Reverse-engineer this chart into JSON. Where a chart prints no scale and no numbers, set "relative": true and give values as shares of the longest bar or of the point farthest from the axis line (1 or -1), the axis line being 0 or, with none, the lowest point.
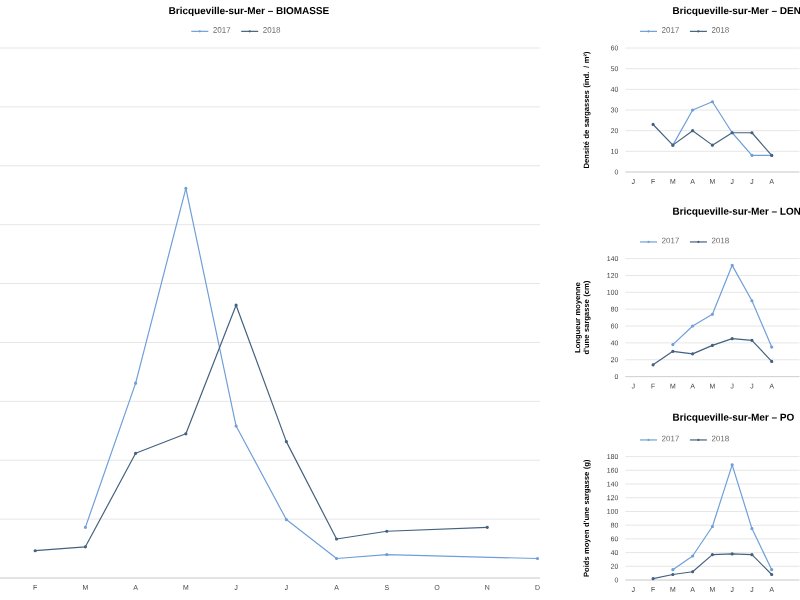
{
  "chart_data": [
    {
      "type": "line",
      "title": "Bricqueville-sur-Mer – BIOMASSE",
      "categories": [
        "F",
        "M",
        "A",
        "M",
        "J",
        "J",
        "A",
        "S",
        "O",
        "N",
        "D"
      ],
      "relative": true,
      "grid": "y",
      "legend": "top",
      "marker": "circle",
      "line_style": "solid",
      "series": [
        {
          "name": "2017",
          "color": "#6f9fd8",
          "values": [
            null,
            0.13,
            0.5,
            1,
            0.39,
            0.15,
            0.05,
            0.06,
            null,
            null,
            0.05
          ]
        },
        {
          "name": "2018",
          "color": "#44627f",
          "values": [
            0.07,
            0.08,
            0.32,
            0.37,
            0.7,
            0.35,
            0.1,
            0.12,
            null,
            0.13,
            null
          ]
        }
      ]
    },
    {
      "type": "line",
      "title": "Bricqueville-sur-Mer – DEN",
      "ylabel": "Densité de sargasses (ind. / m²)",
      "categories": [
        "J",
        "F",
        "M",
        "A",
        "M",
        "J",
        "J",
        "A"
      ],
      "ylim": [
        0,
        60
      ],
      "yticks": [
        0,
        10,
        20,
        30,
        40,
        50,
        60
      ],
      "grid": "y",
      "legend": "top",
      "marker": "circle",
      "line_style": "solid",
      "series": [
        {
          "name": "2017",
          "color": "#6f9fd8",
          "values": [
            null,
            null,
            13,
            30,
            34,
            19,
            8,
            8
          ]
        },
        {
          "name": "2018",
          "color": "#44627f",
          "values": [
            null,
            23,
            13,
            20,
            13,
            19,
            19,
            8
          ]
        }
      ]
    },
    {
      "type": "line",
      "title": "Bricqueville-sur-Mer – LON",
      "ylabel": "Longueur moyenne d'une sargasse (cm)",
      "categories": [
        "J",
        "F",
        "M",
        "A",
        "M",
        "J",
        "J",
        "A"
      ],
      "ylim": [
        0,
        140
      ],
      "yticks": [
        0,
        20,
        40,
        60,
        80,
        100,
        120,
        140
      ],
      "grid": "y",
      "legend": "top",
      "marker": "circle",
      "line_style": "solid",
      "series": [
        {
          "name": "2017",
          "color": "#6f9fd8",
          "values": [
            null,
            null,
            38,
            60,
            74,
            132,
            90,
            35
          ]
        },
        {
          "name": "2018",
          "color": "#44627f",
          "values": [
            null,
            14,
            30,
            27,
            37,
            45,
            43,
            18
          ]
        }
      ]
    },
    {
      "type": "line",
      "title": "Bricqueville-sur-Mer – PO",
      "ylabel": "Poids moyen d'une sargasse (g)",
      "categories": [
        "J",
        "F",
        "M",
        "A",
        "M",
        "J",
        "J",
        "A"
      ],
      "ylim": [
        0,
        180
      ],
      "yticks": [
        0,
        20,
        40,
        60,
        80,
        100,
        120,
        140,
        160,
        180
      ],
      "grid": "y",
      "legend": "top",
      "marker": "circle",
      "line_style": "solid",
      "series": [
        {
          "name": "2017",
          "color": "#6f9fd8",
          "values": [
            null,
            null,
            15,
            35,
            78,
            168,
            75,
            15
          ]
        },
        {
          "name": "2018",
          "color": "#44627f",
          "values": [
            null,
            2,
            8,
            12,
            37,
            38,
            37,
            8
          ]
        }
      ]
    }
  ]
}
